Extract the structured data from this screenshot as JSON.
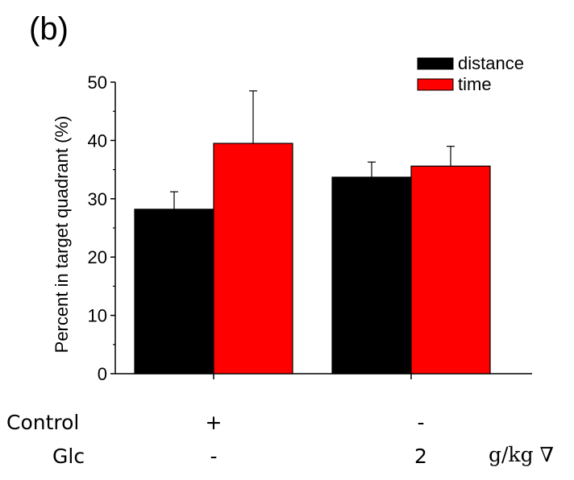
{
  "panel_label": "(b)",
  "table": {
    "rows": [
      {
        "label": "Control",
        "values": [
          "+",
          "-"
        ]
      },
      {
        "label": "Glc",
        "values": [
          "-",
          "2"
        ]
      }
    ],
    "unit": "g/kg ∇"
  },
  "chart_data": {
    "type": "bar",
    "title": "",
    "xlabel": "",
    "ylabel": "Percent in target quadrant (%)",
    "ylim": [
      0,
      50
    ],
    "yticks": [
      0,
      10,
      20,
      30,
      40,
      50
    ],
    "groups": 2,
    "legend_position": "top-right",
    "series": [
      {
        "name": "distance",
        "color": "#000000",
        "values": [
          28.2,
          33.7
        ],
        "errors": [
          3.0,
          2.6
        ]
      },
      {
        "name": "time",
        "color": "#ff0000",
        "values": [
          39.5,
          35.6
        ],
        "errors": [
          9.0,
          3.4
        ]
      }
    ]
  }
}
